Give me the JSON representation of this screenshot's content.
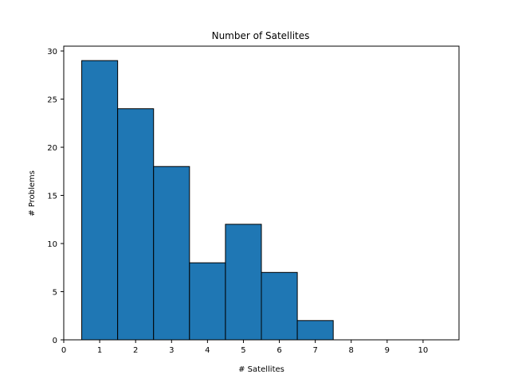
{
  "chart_data": {
    "type": "bar",
    "title": "Number of Satellites",
    "xlabel": "# Satellites",
    "ylabel": "# Problems",
    "xlim": [
      0,
      11
    ],
    "ylim": [
      0,
      30.5
    ],
    "xticks": [
      0,
      1,
      2,
      3,
      4,
      5,
      6,
      7,
      8,
      9,
      10
    ],
    "yticks": [
      0,
      5,
      10,
      15,
      20,
      25,
      30
    ],
    "bars": [
      {
        "x": 1,
        "value": 29
      },
      {
        "x": 2,
        "value": 24
      },
      {
        "x": 3,
        "value": 18
      },
      {
        "x": 4,
        "value": 8
      },
      {
        "x": 5,
        "value": 12
      },
      {
        "x": 6,
        "value": 7
      },
      {
        "x": 7,
        "value": 2
      },
      {
        "x": 8,
        "value": 0
      },
      {
        "x": 9,
        "value": 0
      },
      {
        "x": 10,
        "value": 0
      }
    ],
    "bin_width": 1,
    "bar_color": "#1f77b4",
    "edge_color": "#000000",
    "grid": false
  }
}
